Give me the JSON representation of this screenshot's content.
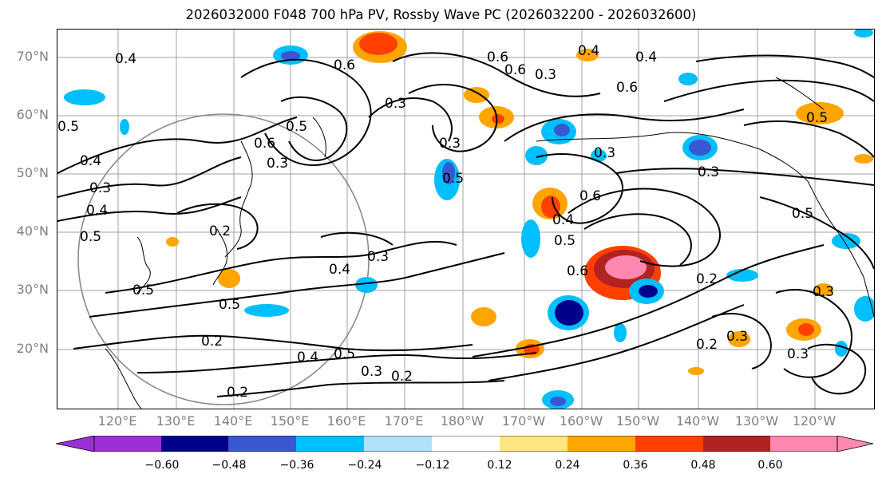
{
  "title": "2026032000 F048 700 hPa PV, Rossby Wave PC (2026032200 - 2026032600)",
  "latitude_labels": [
    "70°N",
    "60°N",
    "50°N",
    "40°N",
    "30°N",
    "20°N"
  ],
  "longitude_labels": [
    "120°E",
    "130°E",
    "140°E",
    "150°E",
    "160°E",
    "170°E",
    "180°W",
    "170°W",
    "160°W",
    "150°W",
    "140°W",
    "130°W",
    "120°W"
  ],
  "contour_labels": [
    "0.2",
    "0.3",
    "0.4",
    "0.5",
    "0.6"
  ],
  "colorbar": {
    "ticks": [
      "−0.60",
      "−0.48",
      "−0.36",
      "−0.24",
      "−0.12",
      "0.12",
      "0.24",
      "0.36",
      "0.48",
      "0.60"
    ],
    "colors": [
      "#9b30d9",
      "#00008b",
      "#3a57d2",
      "#00bfff",
      "#afe1fa",
      "#ffffff",
      "#ffe680",
      "#ffa500",
      "#ff4000",
      "#b22222",
      "#ff88b0",
      "#ff88b0"
    ]
  },
  "shading_colors": {
    "light_blue": "#afe1fa",
    "blue": "#00bfff",
    "royal_blue": "#3a57d2",
    "navy": "#00008b",
    "yellow": "#ffe680",
    "orange": "#ffa500",
    "red_orange": "#ff4000",
    "dark_red": "#b22222",
    "pink": "#ff88b0"
  }
}
